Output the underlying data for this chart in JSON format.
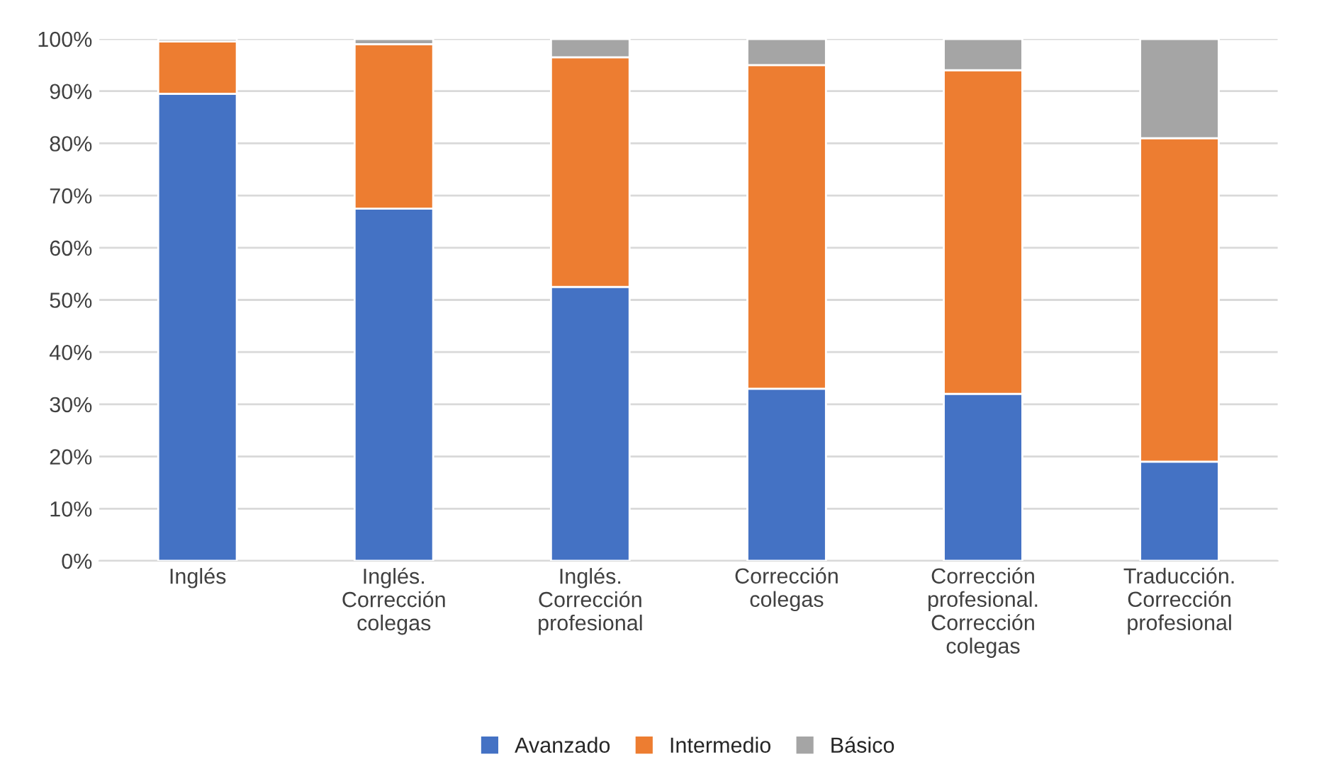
{
  "chart_data": {
    "type": "bar",
    "stacked": true,
    "categories": [
      "Inglés",
      "Inglés. Corrección colegas",
      "Inglés. Corrección profesional",
      "Corrección colegas",
      "Corrección profesional. Corrección colegas",
      "Traducción. Corrección profesional"
    ],
    "series": [
      {
        "name": "Avanzado",
        "color": "#4472c4",
        "values": [
          89.5,
          67.5,
          52.5,
          33,
          32,
          19
        ]
      },
      {
        "name": "Intermedio",
        "color": "#ed7d31",
        "values": [
          10,
          31.5,
          44,
          62,
          62,
          62
        ]
      },
      {
        "name": "Básico",
        "color": "#a5a5a5",
        "values": [
          0.5,
          1,
          3.5,
          5,
          6,
          19
        ]
      }
    ],
    "ylim": [
      0,
      100
    ],
    "yticks": [
      {
        "value": 0,
        "label": "0%"
      },
      {
        "value": 10,
        "label": "10%"
      },
      {
        "value": 20,
        "label": "20%"
      },
      {
        "value": 30,
        "label": "30%"
      },
      {
        "value": 40,
        "label": "40%"
      },
      {
        "value": 50,
        "label": "50%"
      },
      {
        "value": 60,
        "label": "60%"
      },
      {
        "value": 70,
        "label": "70%"
      },
      {
        "value": 80,
        "label": "80%"
      },
      {
        "value": 90,
        "label": "90%"
      },
      {
        "value": 100,
        "label": "100%"
      }
    ],
    "grid": "y",
    "legend": "bottom"
  }
}
